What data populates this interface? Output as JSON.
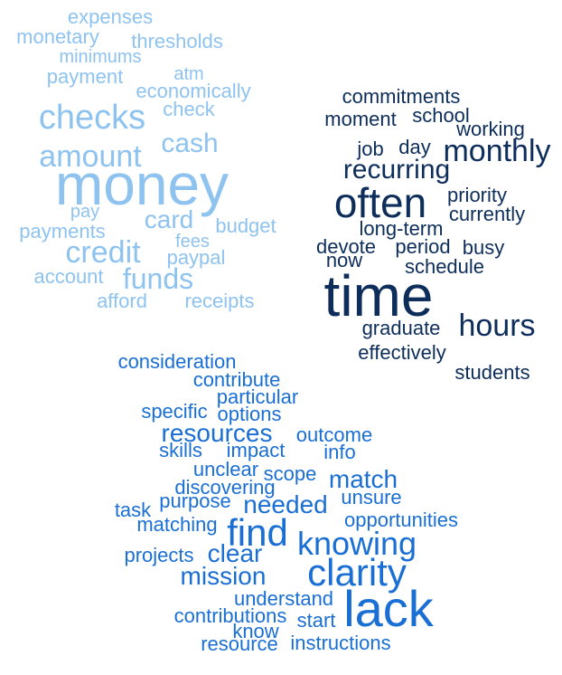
{
  "clusters": [
    {
      "color": "#8ec3f0",
      "words": [
        "expenses",
        "monetary",
        "thresholds",
        "minimums",
        "payment",
        "atm",
        "economically",
        "checks",
        "check",
        "cash",
        "amount",
        "money",
        "pay",
        "card",
        "payments",
        "budget",
        "fees",
        "credit",
        "paypal",
        "account",
        "funds",
        "afford",
        "receipts"
      ]
    },
    {
      "color": "#0d2d5a",
      "words": [
        "commitments",
        "moment",
        "school",
        "working",
        "job",
        "day",
        "monthly",
        "recurring",
        "often",
        "priority",
        "currently",
        "long-term",
        "devote",
        "period",
        "busy",
        "now",
        "schedule",
        "time",
        "graduate",
        "hours",
        "effectively",
        "students"
      ]
    },
    {
      "color": "#1a6fd4",
      "words": [
        "consideration",
        "contribute",
        "particular",
        "specific",
        "options",
        "resources",
        "outcome",
        "skills",
        "impact",
        "info",
        "unclear",
        "scope",
        "match",
        "discovering",
        "unsure",
        "task",
        "purpose",
        "needed",
        "matching",
        "find",
        "opportunities",
        "knowing",
        "projects",
        "clear",
        "mission",
        "clarity",
        "understand",
        "lack",
        "contributions",
        "start",
        "know",
        "resource",
        "instructions"
      ]
    }
  ]
}
